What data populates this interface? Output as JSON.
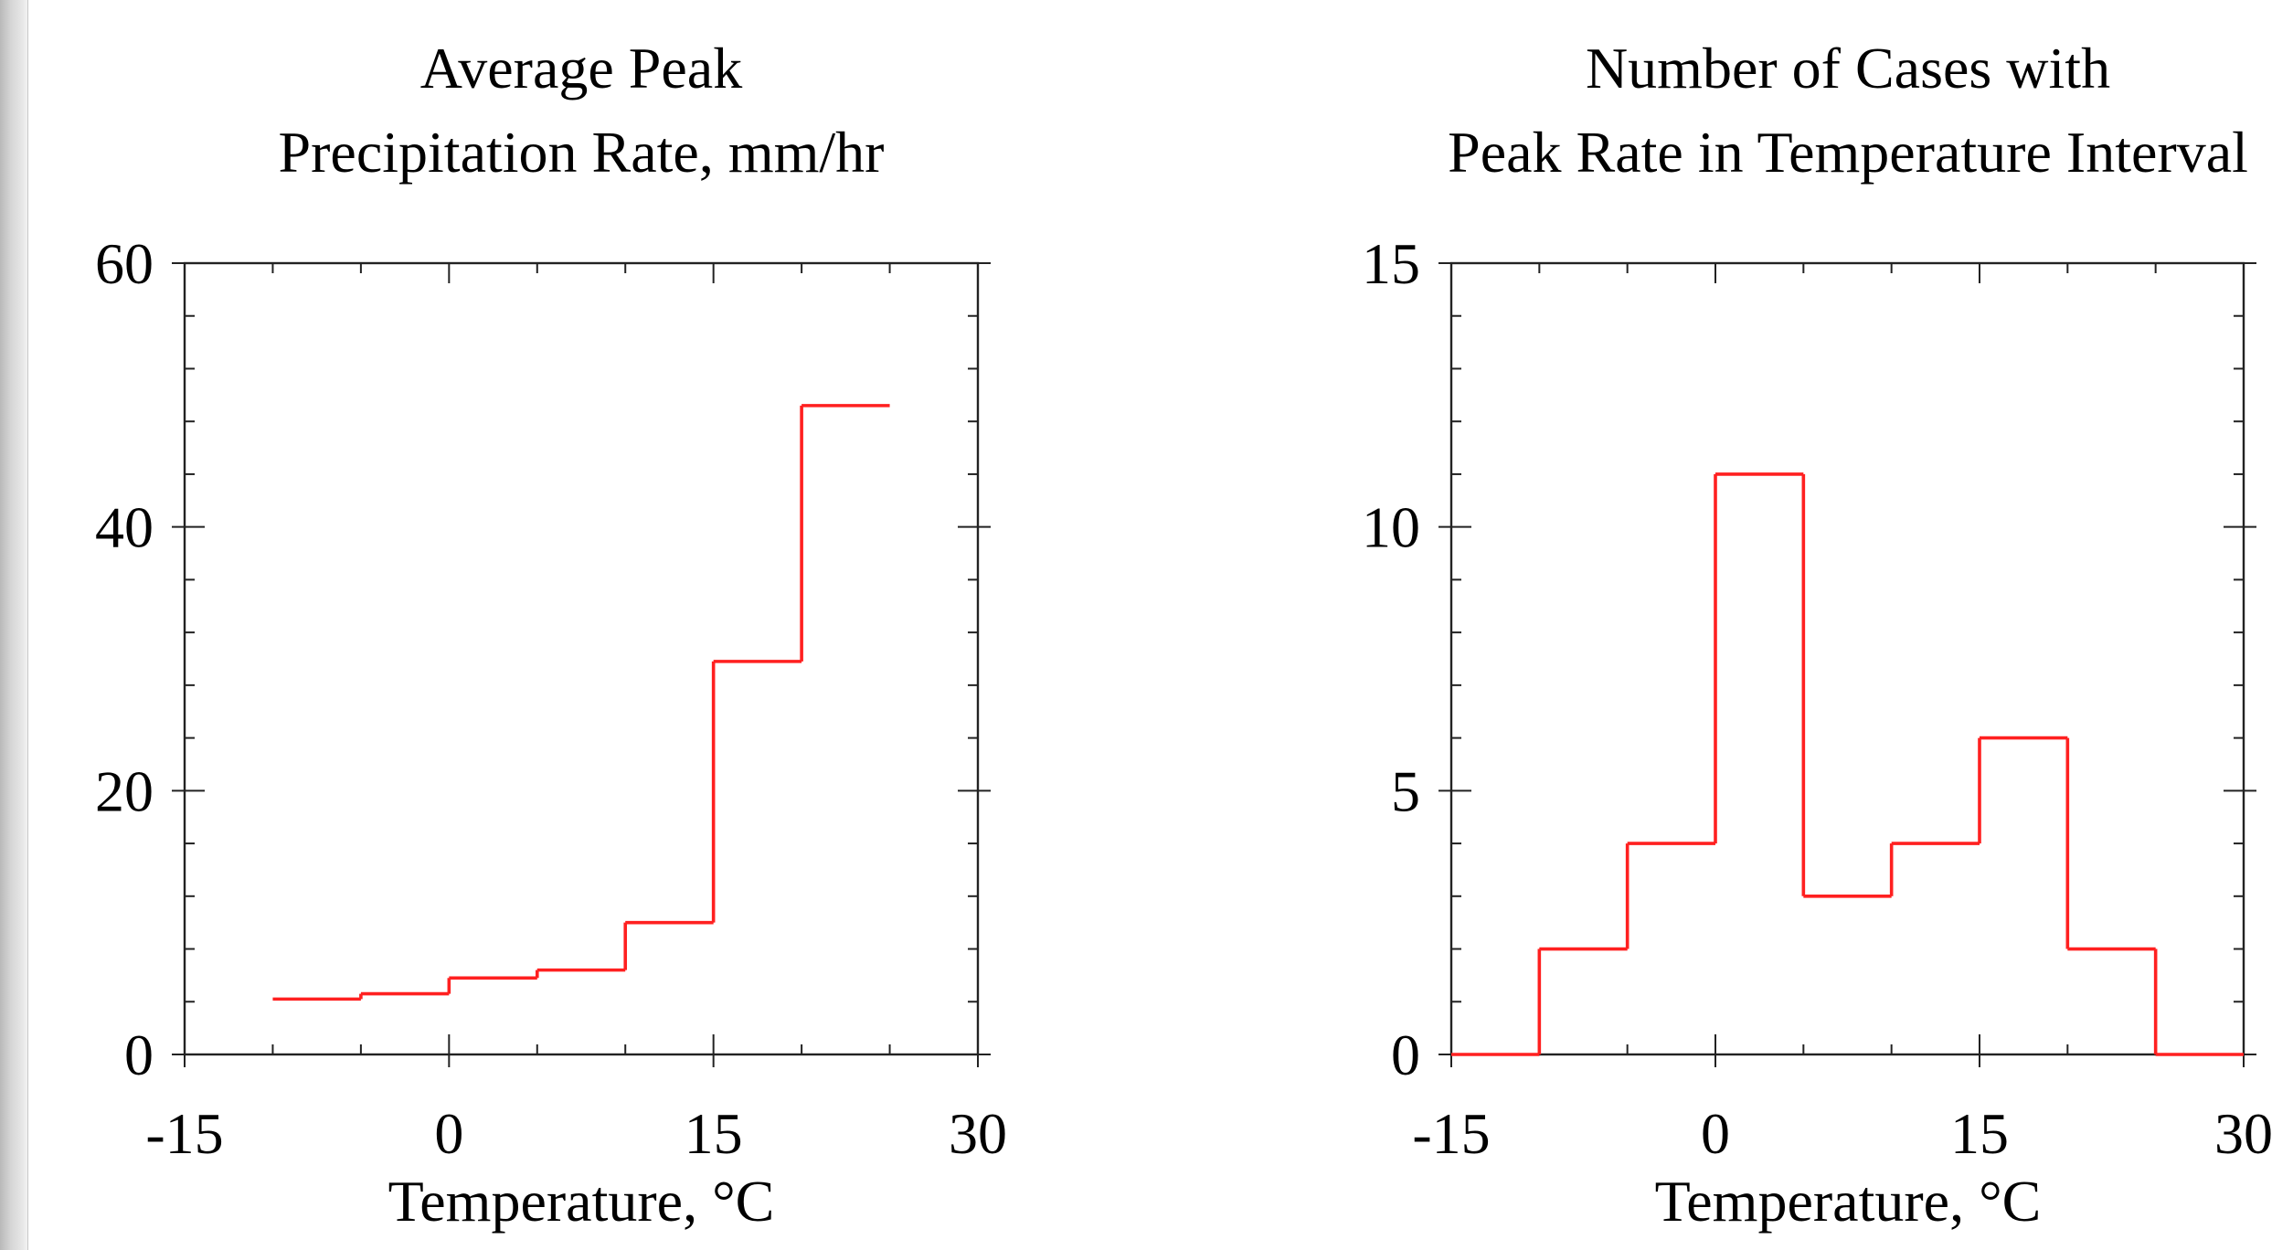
{
  "colors": {
    "series_line": "#ff2020",
    "axis": "#222222",
    "background": "#ffffff"
  },
  "chart_data": [
    {
      "type": "line",
      "style": "step",
      "title_lines": [
        "Average Peak",
        "Precipitation Rate, mm/hr"
      ],
      "xlabel": "Temperature, °C",
      "ylabel": "",
      "xlim": [
        -15,
        30
      ],
      "ylim": [
        0,
        60
      ],
      "grid": false,
      "x_ticks": [
        -15,
        0,
        15,
        30
      ],
      "x_tick_labels": [
        "-15",
        "0",
        "15",
        "30"
      ],
      "x_minor_step": 5,
      "y_ticks": [
        0,
        20,
        40,
        60
      ],
      "y_tick_labels": [
        "0",
        "20",
        "40",
        "60"
      ],
      "y_minor_step": 4,
      "bin_edges": [
        -10,
        -5,
        0,
        5,
        10,
        15,
        20,
        25
      ],
      "values": [
        4.2,
        4.6,
        5.8,
        6.4,
        10.0,
        29.8,
        49.2
      ],
      "series": [
        {
          "bin_edges": [
            -10,
            -5,
            0,
            5,
            10,
            15,
            20,
            25
          ],
          "values": [
            4.2,
            4.6,
            5.8,
            6.4,
            10.0,
            29.8,
            49.2
          ]
        }
      ]
    },
    {
      "type": "line",
      "style": "step",
      "title_lines": [
        "Number of Cases with",
        "Peak Rate in Temperature Interval"
      ],
      "xlabel": "Temperature, °C",
      "ylabel": "",
      "xlim": [
        -15,
        30
      ],
      "ylim": [
        0,
        15
      ],
      "grid": false,
      "x_ticks": [
        -15,
        0,
        15,
        30
      ],
      "x_tick_labels": [
        "-15",
        "0",
        "15",
        "30"
      ],
      "x_minor_step": 5,
      "y_ticks": [
        0,
        5,
        10,
        15
      ],
      "y_tick_labels": [
        "0",
        "5",
        "10",
        "15"
      ],
      "y_minor_step": 1,
      "bin_edges": [
        -15,
        -10,
        -5,
        0,
        5,
        10,
        15,
        20,
        25,
        30
      ],
      "values": [
        0,
        2,
        4,
        11,
        3,
        4,
        6,
        2,
        0
      ],
      "series": [
        {
          "bin_edges": [
            -15,
            -10,
            -5,
            0,
            5,
            10,
            15,
            20,
            25,
            30
          ],
          "values": [
            0,
            2,
            4,
            11,
            3,
            4,
            6,
            2,
            0
          ]
        }
      ]
    }
  ]
}
